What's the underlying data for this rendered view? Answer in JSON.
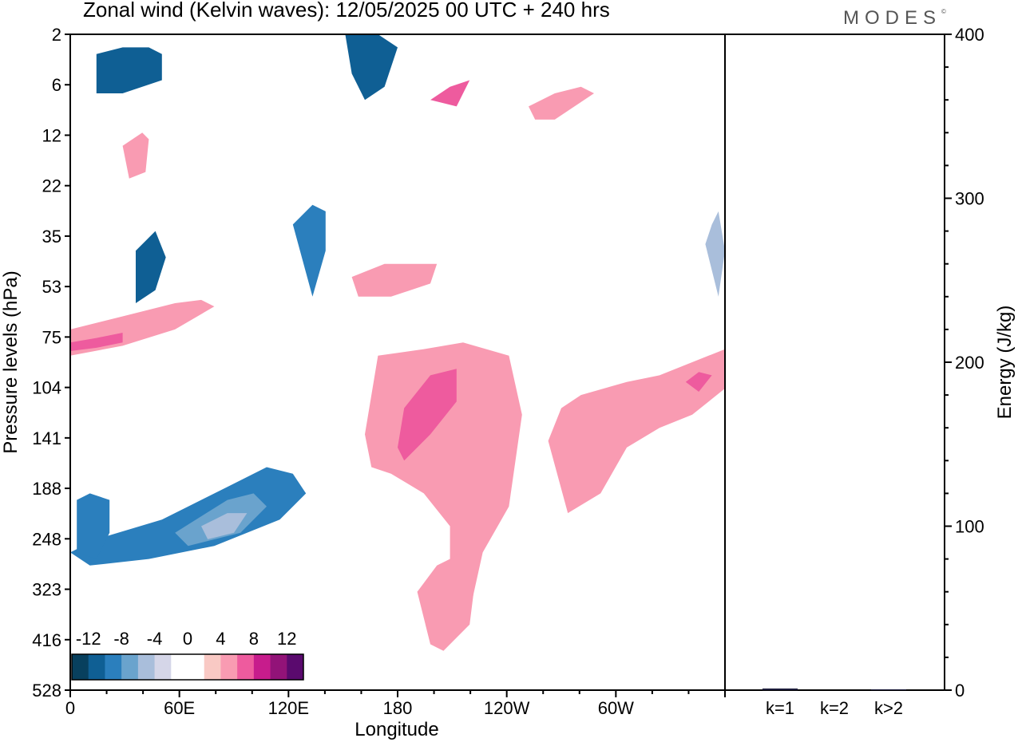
{
  "title": "Zonal wind (Kelvin waves):  12/05/2025  00 UTC  + 240 hrs",
  "logo": "MODES",
  "chart_data": [
    {
      "type": "heatmap",
      "title": "Zonal wind (Kelvin waves):  12/05/2025  00 UTC  + 240 hrs",
      "xlabel": "Longitude",
      "ylabel": "Pressure levels (hPa)",
      "x_ticks": [
        "0",
        "60E",
        "120E",
        "180",
        "120W",
        "60W"
      ],
      "y_ticks": [
        "2",
        "6",
        "12",
        "22",
        "35",
        "53",
        "75",
        "104",
        "141",
        "188",
        "248",
        "323",
        "416",
        "528"
      ],
      "colorbar": {
        "tick_labels": [
          "-12",
          "-8",
          "-4",
          "0",
          "4",
          "8",
          "12"
        ],
        "colors": [
          "#08405e",
          "#0f5f94",
          "#2b7fbd",
          "#6aa3cd",
          "#a9bedb",
          "#d5d6e8",
          "#ffffff",
          "#ffffff",
          "#f9c9c4",
          "#f99bb2",
          "#ee5b9e",
          "#c71c8c",
          "#921378",
          "#5a0a6e"
        ]
      },
      "regions": [
        {
          "level": 2,
          "points": [
            [
              0,
              79
            ],
            [
              4,
              77
            ],
            [
              14,
              74
            ],
            [
              24,
              69
            ],
            [
              30,
              66
            ],
            [
              34,
              67
            ],
            [
              36,
              70
            ],
            [
              32,
              74
            ],
            [
              22,
              78
            ],
            [
              12,
              80
            ],
            [
              3,
              81
            ]
          ]
        },
        {
          "level": 3,
          "points": [
            [
              16,
              76
            ],
            [
              24,
              71
            ],
            [
              28,
              70
            ],
            [
              30,
              72
            ],
            [
              26,
              76
            ],
            [
              18,
              78
            ]
          ]
        },
        {
          "level": 4,
          "points": [
            [
              20,
              75
            ],
            [
              24,
              73
            ],
            [
              27,
              73
            ],
            [
              25,
              76
            ],
            [
              21,
              77
            ]
          ]
        },
        {
          "level": 2,
          "points": [
            [
              1,
              71
            ],
            [
              3,
              70
            ],
            [
              6,
              71
            ],
            [
              6,
              76
            ],
            [
              4,
              80
            ],
            [
              1,
              79
            ]
          ]
        },
        {
          "level": 9,
          "points": [
            [
              0,
              45
            ],
            [
              8,
              43
            ],
            [
              16,
              41
            ],
            [
              20,
              40.5
            ],
            [
              22,
              41.5
            ],
            [
              16,
              45
            ],
            [
              8,
              47.5
            ],
            [
              0,
              49
            ]
          ]
        },
        {
          "level": 10,
          "points": [
            [
              0,
              47
            ],
            [
              4,
              46.3
            ],
            [
              8,
              45.5
            ],
            [
              8,
              47
            ],
            [
              4,
              47.8
            ],
            [
              0,
              48.3
            ]
          ]
        },
        {
          "level": 1,
          "points": [
            [
              42,
              0
            ],
            [
              47,
              0
            ],
            [
              50,
              2
            ],
            [
              48,
              8
            ],
            [
              45,
              10
            ],
            [
              43,
              6
            ]
          ]
        },
        {
          "level": 1,
          "points": [
            [
              4,
              3
            ],
            [
              8,
              2
            ],
            [
              12,
              2
            ],
            [
              14,
              3
            ],
            [
              14,
              7
            ],
            [
              8,
              9
            ],
            [
              4,
              9
            ]
          ]
        },
        {
          "level": 9,
          "points": [
            [
              8,
              17
            ],
            [
              11,
              15
            ],
            [
              12,
              16
            ],
            [
              11.5,
              21
            ],
            [
              9,
              22
            ]
          ]
        },
        {
          "level": 1,
          "points": [
            [
              10,
              33
            ],
            [
              13,
              30
            ],
            [
              14.6,
              34
            ],
            [
              13,
              39
            ],
            [
              10,
              41
            ]
          ]
        },
        {
          "level": 9,
          "points": [
            [
              45,
              61
            ],
            [
              47,
              49
            ],
            [
              54,
              48
            ],
            [
              60,
              47
            ],
            [
              67,
              49
            ],
            [
              69,
              58
            ],
            [
              67,
              72
            ],
            [
              63,
              79
            ],
            [
              61,
              88
            ],
            [
              58,
              83
            ],
            [
              58,
              75
            ],
            [
              54,
              70
            ],
            [
              49,
              67
            ],
            [
              46,
              66
            ]
          ]
        },
        {
          "level": 10,
          "points": [
            [
              50,
              63
            ],
            [
              51,
              57
            ],
            [
              55,
              52
            ],
            [
              59,
              51
            ],
            [
              59,
              56
            ],
            [
              55,
              61
            ],
            [
              51,
              65
            ]
          ]
        },
        {
          "level": 9,
          "points": [
            [
              53,
              85
            ],
            [
              56,
              81
            ],
            [
              60,
              79
            ],
            [
              62,
              82
            ],
            [
              61,
              90
            ],
            [
              57,
              94
            ],
            [
              55,
              93
            ]
          ]
        },
        {
          "level": 9,
          "points": [
            [
              73,
              62
            ],
            [
              75,
              57
            ],
            [
              78,
              55
            ],
            [
              85,
              53
            ],
            [
              90,
              52
            ],
            [
              100,
              48
            ],
            [
              100,
              54
            ],
            [
              95,
              58
            ],
            [
              90,
              60
            ],
            [
              85,
              63
            ],
            [
              81,
              70
            ],
            [
              76,
              73
            ]
          ]
        },
        {
          "level": 10,
          "points": [
            [
              94,
              53
            ],
            [
              96,
              51.5
            ],
            [
              98,
              52
            ],
            [
              96,
              54.5
            ]
          ]
        },
        {
          "level": 9,
          "points": [
            [
              70,
              11
            ],
            [
              74,
              9
            ],
            [
              78,
              8
            ],
            [
              80,
              9
            ],
            [
              74,
              13
            ],
            [
              71,
              13
            ]
          ]
        },
        {
          "level": 10,
          "points": [
            [
              55,
              10
            ],
            [
              58,
              8
            ],
            [
              61,
              7
            ],
            [
              59,
              11
            ]
          ]
        },
        {
          "level": 9,
          "points": [
            [
              43,
              37
            ],
            [
              48,
              35
            ],
            [
              56,
              35
            ],
            [
              55,
              38
            ],
            [
              49,
              40
            ],
            [
              44,
              40
            ]
          ]
        },
        {
          "level": 4,
          "points": [
            [
              97,
              32
            ],
            [
              98,
              29
            ],
            [
              99,
              27
            ],
            [
              100,
              33
            ],
            [
              99,
              40
            ]
          ]
        },
        {
          "level": 2,
          "points": [
            [
              34,
              29
            ],
            [
              37,
              26
            ],
            [
              39,
              27
            ],
            [
              39,
              33
            ],
            [
              37,
              40
            ]
          ]
        }
      ],
      "energy_panel": {
        "ylabel": "Energy (J/kg)",
        "ylim": [
          0,
          400
        ],
        "y_ticks": [
          "0",
          "100",
          "200",
          "300",
          "400"
        ],
        "categories": [
          "k=1",
          "k=2",
          "k>2"
        ],
        "values": [
          1,
          0,
          0.5
        ]
      }
    }
  ]
}
